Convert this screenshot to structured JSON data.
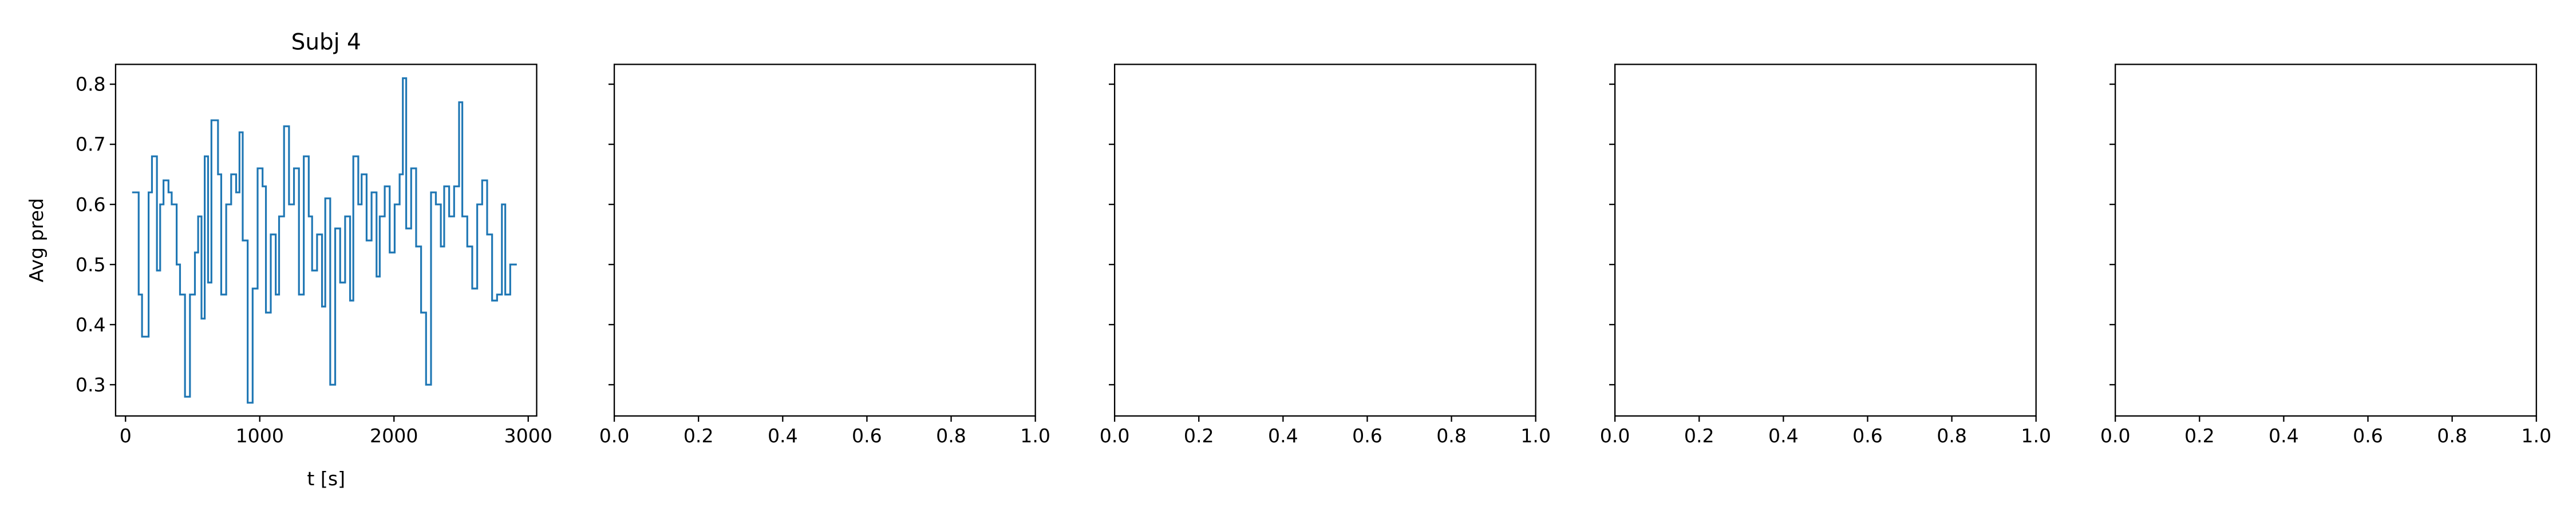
{
  "chart_data": [
    {
      "type": "line",
      "title": "Subj 4",
      "xlabel": "t [s]",
      "ylabel": "Avg pred",
      "step": "post",
      "color": "#1f77b4",
      "x": [
        49,
        98,
        123,
        172,
        197,
        234,
        258,
        283,
        320,
        344,
        381,
        406,
        443,
        480,
        517,
        541,
        566,
        590,
        615,
        640,
        689,
        713,
        750,
        787,
        824,
        849,
        873,
        910,
        947,
        984,
        1021,
        1046,
        1082,
        1119,
        1144,
        1181,
        1218,
        1255,
        1292,
        1328,
        1365,
        1390,
        1427,
        1464,
        1488,
        1525,
        1562,
        1599,
        1636,
        1673,
        1697,
        1734,
        1759,
        1796,
        1833,
        1870,
        1894,
        1931,
        1968,
        2005,
        2042,
        2066,
        2091,
        2128,
        2165,
        2202,
        2239,
        2276,
        2312,
        2349,
        2374,
        2411,
        2448,
        2485,
        2509,
        2546,
        2583,
        2620,
        2657,
        2694,
        2731,
        2768,
        2804,
        2829,
        2866,
        2915
      ],
      "values": [
        0.62,
        0.45,
        0.38,
        0.62,
        0.68,
        0.49,
        0.6,
        0.64,
        0.62,
        0.6,
        0.5,
        0.45,
        0.28,
        0.45,
        0.52,
        0.58,
        0.41,
        0.68,
        0.47,
        0.74,
        0.65,
        0.45,
        0.6,
        0.65,
        0.62,
        0.72,
        0.54,
        0.27,
        0.46,
        0.66,
        0.63,
        0.42,
        0.55,
        0.45,
        0.58,
        0.73,
        0.6,
        0.66,
        0.45,
        0.68,
        0.58,
        0.49,
        0.55,
        0.43,
        0.61,
        0.3,
        0.56,
        0.47,
        0.58,
        0.44,
        0.68,
        0.6,
        0.65,
        0.54,
        0.62,
        0.48,
        0.58,
        0.63,
        0.52,
        0.6,
        0.65,
        0.81,
        0.56,
        0.66,
        0.53,
        0.42,
        0.3,
        0.62,
        0.6,
        0.53,
        0.63,
        0.58,
        0.63,
        0.77,
        0.58,
        0.53,
        0.46,
        0.6,
        0.64,
        0.55,
        0.44,
        0.45,
        0.6,
        0.45,
        0.5,
        0.5
      ],
      "xlim": [
        -74,
        3063
      ],
      "xticks": [
        0,
        1000,
        2000,
        3000
      ],
      "ylim": [
        0.248,
        0.833
      ],
      "yticks": [
        0.3,
        0.4,
        0.5,
        0.6,
        0.7,
        0.8
      ]
    },
    {
      "type": "line",
      "sharey": true,
      "xlim": [
        0,
        1
      ],
      "xticks": [
        {
          "value": 0,
          "label": "0.0"
        },
        {
          "value": 0.2,
          "label": "0.2"
        },
        {
          "value": 0.4,
          "label": "0.4"
        },
        {
          "value": 0.6,
          "label": "0.6"
        },
        {
          "value": 0.8,
          "label": "0.8"
        },
        {
          "value": 1,
          "label": "1.0"
        }
      ]
    },
    {
      "type": "line",
      "sharey": true,
      "xlim": [
        0,
        1
      ],
      "xticks": [
        {
          "value": 0,
          "label": "0.0"
        },
        {
          "value": 0.2,
          "label": "0.2"
        },
        {
          "value": 0.4,
          "label": "0.4"
        },
        {
          "value": 0.6,
          "label": "0.6"
        },
        {
          "value": 0.8,
          "label": "0.8"
        },
        {
          "value": 1,
          "label": "1.0"
        }
      ]
    },
    {
      "type": "line",
      "sharey": true,
      "xlim": [
        0,
        1
      ],
      "xticks": [
        {
          "value": 0,
          "label": "0.0"
        },
        {
          "value": 0.2,
          "label": "0.2"
        },
        {
          "value": 0.4,
          "label": "0.4"
        },
        {
          "value": 0.6,
          "label": "0.6"
        },
        {
          "value": 0.8,
          "label": "0.8"
        },
        {
          "value": 1,
          "label": "1.0"
        }
      ]
    },
    {
      "type": "line",
      "sharey": true,
      "xlim": [
        0,
        1
      ],
      "xticks": [
        {
          "value": 0,
          "label": "0.0"
        },
        {
          "value": 0.2,
          "label": "0.2"
        },
        {
          "value": 0.4,
          "label": "0.4"
        },
        {
          "value": 0.6,
          "label": "0.6"
        },
        {
          "value": 0.8,
          "label": "0.8"
        },
        {
          "value": 1,
          "label": "1.0"
        }
      ]
    }
  ]
}
